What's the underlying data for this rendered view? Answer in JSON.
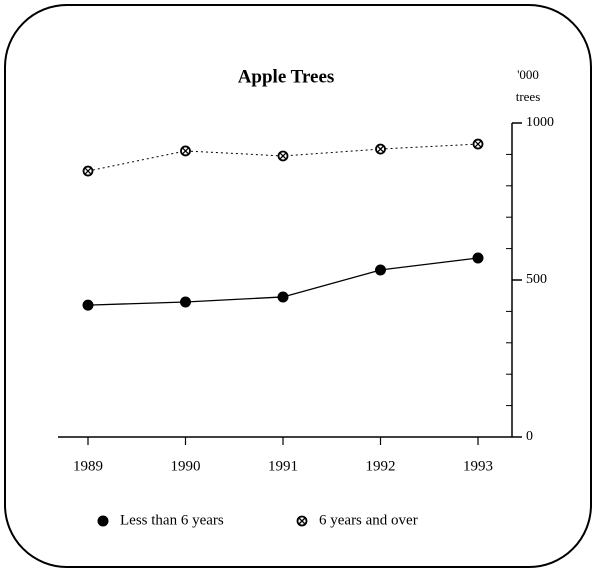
{
  "chart_data": {
    "type": "line",
    "title": "Apple Trees",
    "y_axis_label": [
      "'000",
      "trees"
    ],
    "categories": [
      "1989",
      "1990",
      "1991",
      "1992",
      "1993"
    ],
    "series": [
      {
        "name": "Less than 6 years",
        "color": "#000000",
        "marker": "filled",
        "line_style": "solid",
        "values": [
          420,
          430,
          446,
          532,
          570
        ]
      },
      {
        "name": "6 years and over",
        "color": "#000000",
        "marker": "hatched",
        "line_style": "dotted",
        "values": [
          847,
          911,
          895,
          917,
          933
        ]
      }
    ],
    "ylim": [
      0,
      1000
    ],
    "yticks": [
      0,
      500,
      1000
    ],
    "minor_yticks": [
      100,
      200,
      300,
      400,
      600,
      700,
      800,
      900
    ],
    "y_axis_side": "right",
    "grid": false,
    "legend": "bottom"
  }
}
